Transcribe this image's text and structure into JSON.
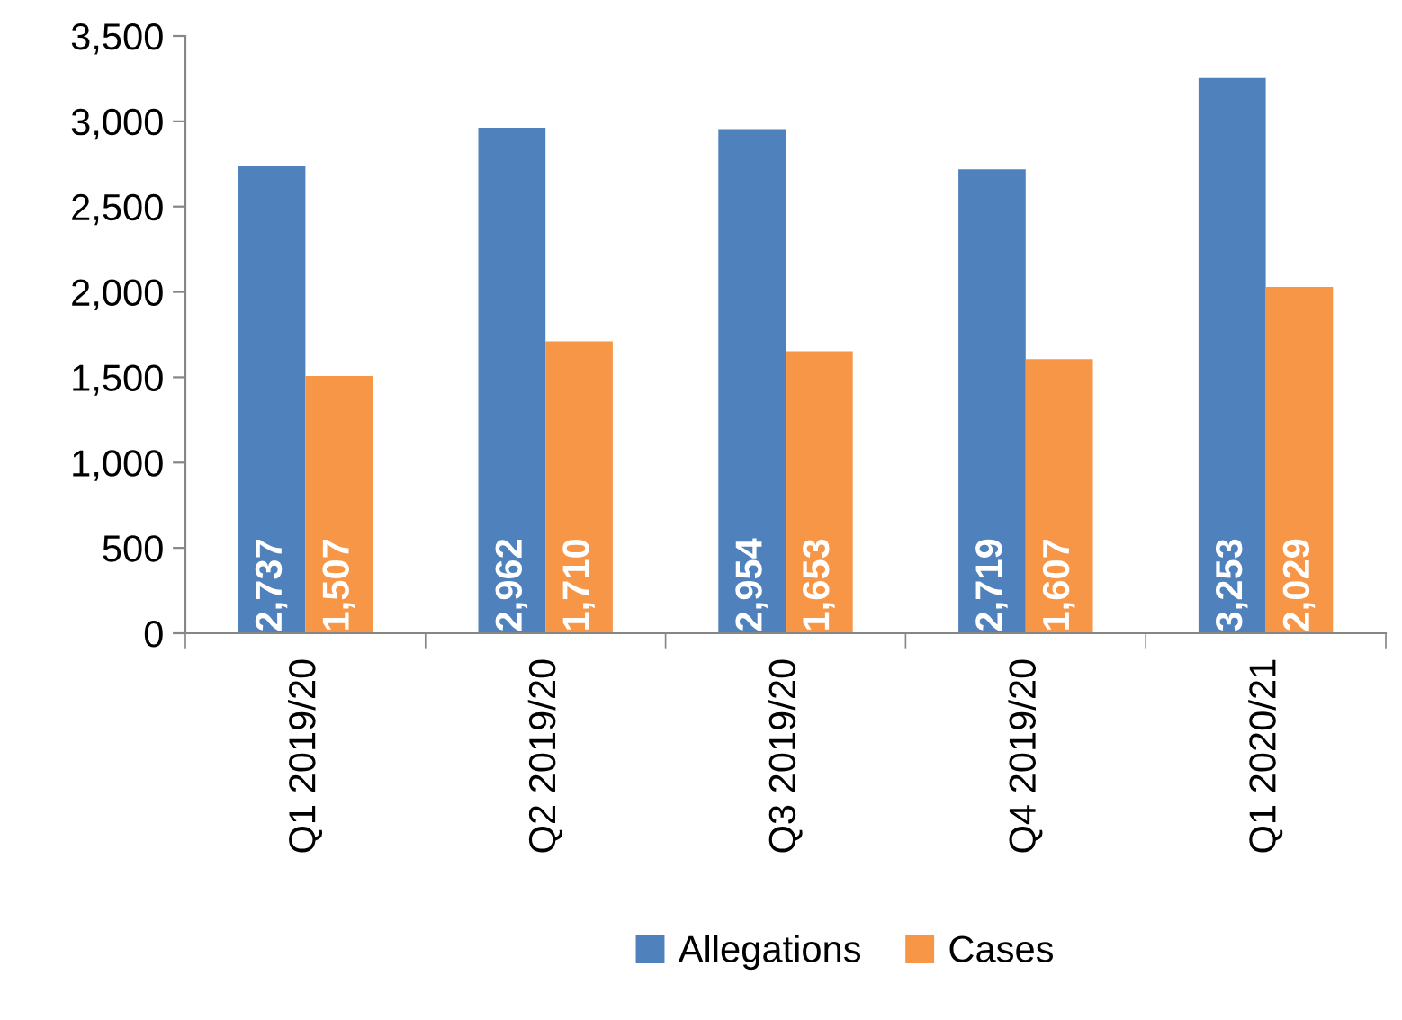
{
  "chart_data": {
    "type": "bar",
    "categories": [
      "Q1 2019/20",
      "Q2 2019/20",
      "Q3 2019/20",
      "Q4 2019/20",
      "Q1 2020/21"
    ],
    "series": [
      {
        "name": "Allegations",
        "color": "#4f81bd",
        "values": [
          2737,
          2962,
          2954,
          2719,
          3253
        ],
        "value_labels": [
          "2,737",
          "2,962",
          "2,954",
          "2,719",
          "3,253"
        ]
      },
      {
        "name": "Cases",
        "color": "#f79646",
        "values": [
          1507,
          1710,
          1653,
          1607,
          2029
        ],
        "value_labels": [
          "1,507",
          "1,710",
          "1,653",
          "1,607",
          "2,029"
        ]
      }
    ],
    "ylim": [
      0,
      3500
    ],
    "yticks": [
      {
        "value": 0,
        "label": "0"
      },
      {
        "value": 500,
        "label": "500"
      },
      {
        "value": 1000,
        "label": "1,000"
      },
      {
        "value": 1500,
        "label": "1,500"
      },
      {
        "value": 2000,
        "label": "2,000"
      },
      {
        "value": 2500,
        "label": "2,500"
      },
      {
        "value": 3000,
        "label": "3,000"
      },
      {
        "value": 3500,
        "label": "3,500"
      }
    ],
    "grid": false,
    "legend": "bottom"
  }
}
